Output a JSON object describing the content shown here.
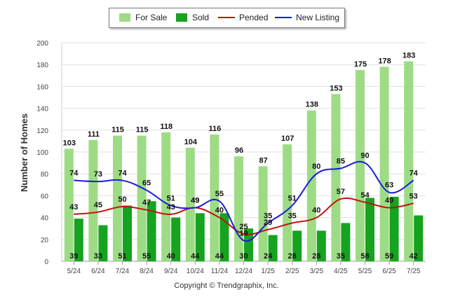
{
  "chart_data": {
    "type": "bar",
    "title": "",
    "xlabel": "",
    "ylabel": "Number of Homes",
    "ylim": [
      0,
      200
    ],
    "yticks": [
      0,
      20,
      40,
      60,
      80,
      100,
      120,
      140,
      160,
      180,
      200
    ],
    "grid": true,
    "legend_position": "top-center",
    "categories": [
      "5/24",
      "6/24",
      "7/24",
      "8/24",
      "9/24",
      "10/24",
      "11/24",
      "12/24",
      "1/25",
      "2/25",
      "3/25",
      "4/25",
      "5/25",
      "6/25",
      "7/25"
    ],
    "series": [
      {
        "name": "For Sale",
        "kind": "bar",
        "color": "#9ddc84",
        "values": [
          103,
          111,
          115,
          115,
          118,
          104,
          116,
          96,
          87,
          107,
          138,
          153,
          175,
          178,
          183
        ]
      },
      {
        "name": "Sold",
        "kind": "bar",
        "color": "#16a31f",
        "values": [
          39,
          33,
          51,
          55,
          40,
          44,
          44,
          30,
          24,
          28,
          28,
          35,
          58,
          59,
          42
        ]
      },
      {
        "name": "Pended",
        "kind": "line",
        "color": "#c0140e",
        "values": [
          43,
          45,
          50,
          47,
          43,
          49,
          40,
          25,
          29,
          35,
          40,
          57,
          54,
          49,
          53
        ]
      },
      {
        "name": "New Listing",
        "kind": "line",
        "color": "#1a1ae0",
        "values": [
          74,
          73,
          74,
          65,
          51,
          49,
          55,
          19,
          35,
          51,
          80,
          85,
          90,
          63,
          74
        ]
      }
    ]
  },
  "legend": {
    "for_sale": "For Sale",
    "sold": "Sold",
    "pended": "Pended",
    "new_listing": "New Listing"
  },
  "copyright": "Copyright © Trendgraphix, Inc."
}
